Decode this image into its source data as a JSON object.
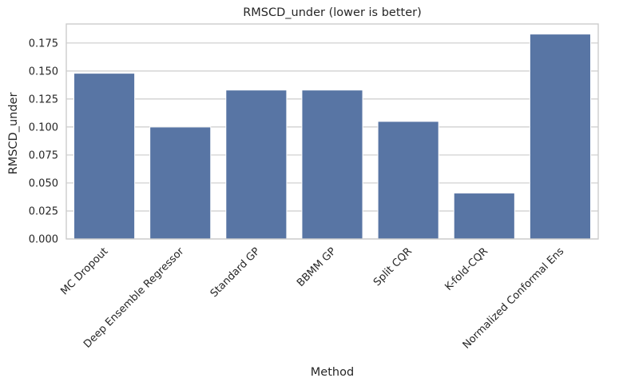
{
  "chart_data": {
    "type": "bar",
    "title": "RMSCD_under (lower is better)",
    "xlabel": "Method",
    "ylabel": "RMSCD_under",
    "categories": [
      "MC Dropout",
      "Deep Ensemble Regressor",
      "Standard GP",
      "BBMM GP",
      "Split CQR",
      "K-fold-CQR",
      "Normalized Conformal Ens"
    ],
    "values": [
      0.148,
      0.1,
      0.133,
      0.133,
      0.105,
      0.041,
      0.183
    ],
    "ylim": [
      0,
      0.192
    ],
    "yticks": [
      0.0,
      0.025,
      0.05,
      0.075,
      0.1,
      0.125,
      0.15,
      0.175
    ],
    "ytick_labels": [
      "0.000",
      "0.025",
      "0.050",
      "0.075",
      "0.100",
      "0.125",
      "0.150",
      "0.175"
    ],
    "grid": "horizontal",
    "bar_color": "#5875a4",
    "grid_color": "#cccccc",
    "axis_color": "#cccccc",
    "x_tick_rotation_deg": 45
  }
}
